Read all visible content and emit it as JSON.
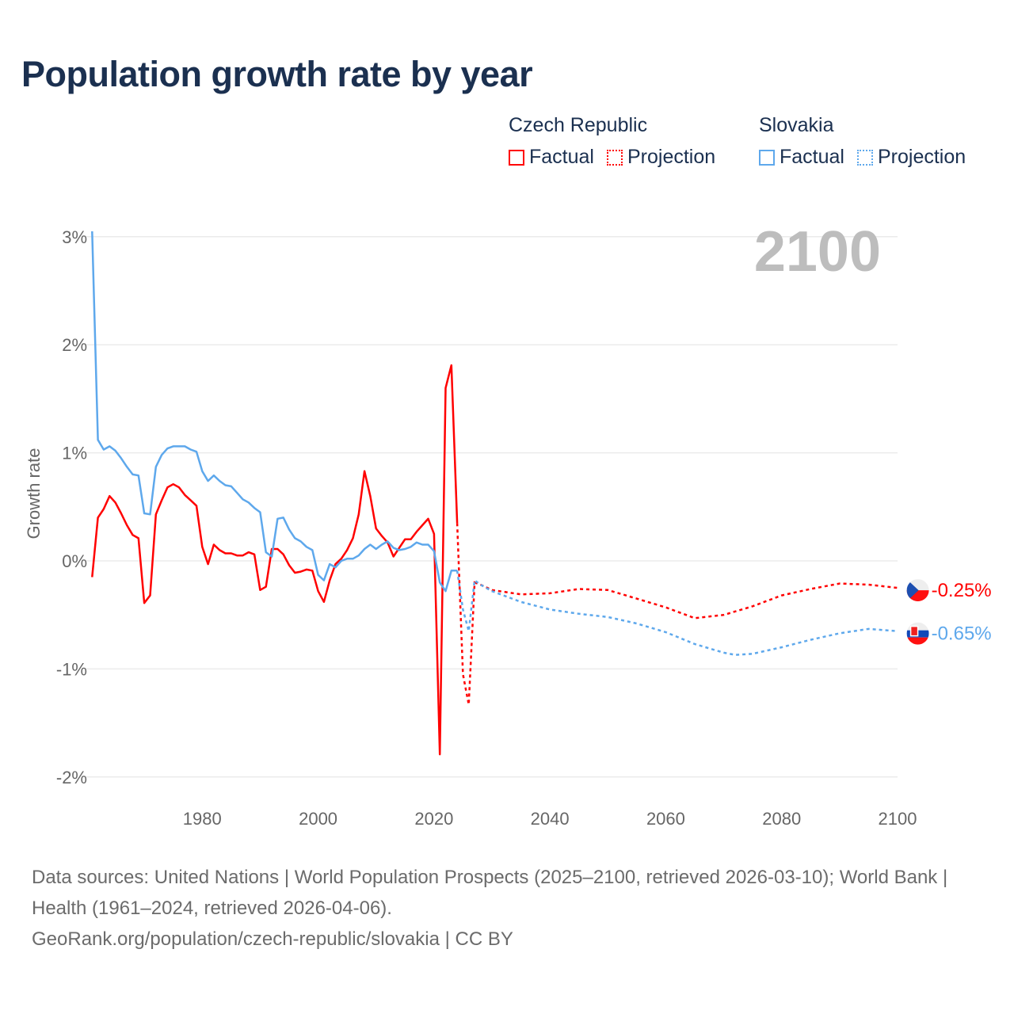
{
  "title": "Population growth rate by year",
  "legend": {
    "groups": [
      {
        "name": "Czech Republic",
        "color": "#ff0000",
        "factual": "Factual",
        "projection": "Projection"
      },
      {
        "name": "Slovakia",
        "color": "#5ea8ec",
        "factual": "Factual",
        "projection": "Projection"
      }
    ]
  },
  "footer": {
    "sources": "Data sources: United Nations | World Population Prospects (2025–2100, retrieved 2026-03-10); World Bank | Health (1961–2024, retrieved 2026-04-06).",
    "url": "GeoRank.org/population/czech-republic/slovakia | CC BY"
  },
  "chart_data": {
    "type": "line",
    "title": "Population growth rate by year",
    "ylabel": "Growth rate",
    "xlabel": "",
    "year_display": "2100",
    "xlim": [
      1960,
      2100
    ],
    "ylim": [
      -2.2,
      3.1
    ],
    "x_ticks": [
      "1980",
      "2000",
      "2020",
      "2040",
      "2060",
      "2080",
      "2100"
    ],
    "y_ticks": [
      {
        "v": 3,
        "label": "3%"
      },
      {
        "v": 2,
        "label": "2%"
      },
      {
        "v": 1,
        "label": "1%"
      },
      {
        "v": 0,
        "label": "0%"
      },
      {
        "v": -1,
        "label": "-1%"
      },
      {
        "v": -2,
        "label": "-2%"
      }
    ],
    "grid": true,
    "series": [
      {
        "name": "Czech Republic",
        "color": "#ff0000",
        "end_label": "-0.25%",
        "factual_start": 1961,
        "factual": [
          -0.15,
          0.4,
          0.48,
          0.6,
          0.54,
          0.44,
          0.33,
          0.24,
          0.21,
          -0.39,
          -0.32,
          0.43,
          0.56,
          0.68,
          0.71,
          0.68,
          0.61,
          0.56,
          0.51,
          0.13,
          -0.03,
          0.15,
          0.1,
          0.07,
          0.07,
          0.05,
          0.05,
          0.08,
          0.06,
          -0.27,
          -0.24,
          0.11,
          0.11,
          0.06,
          -0.04,
          -0.11,
          -0.1,
          -0.08,
          -0.09,
          -0.28,
          -0.38,
          -0.18,
          -0.03,
          0.02,
          0.1,
          0.21,
          0.43,
          0.83,
          0.6,
          0.3,
          0.23,
          0.17,
          0.04,
          0.12,
          0.2,
          0.2,
          0.27,
          0.33,
          0.39,
          0.25,
          -1.79,
          1.6,
          1.81,
          0.35
        ],
        "projection": [
          [
            2024,
            0.35
          ],
          [
            2025,
            -1.05
          ],
          [
            2026,
            -1.33
          ],
          [
            2027,
            -0.2
          ],
          [
            2028,
            -0.22
          ],
          [
            2030,
            -0.27
          ],
          [
            2035,
            -0.31
          ],
          [
            2040,
            -0.3
          ],
          [
            2045,
            -0.26
          ],
          [
            2050,
            -0.27
          ],
          [
            2055,
            -0.35
          ],
          [
            2060,
            -0.43
          ],
          [
            2065,
            -0.53
          ],
          [
            2070,
            -0.5
          ],
          [
            2075,
            -0.42
          ],
          [
            2080,
            -0.32
          ],
          [
            2085,
            -0.26
          ],
          [
            2090,
            -0.21
          ],
          [
            2095,
            -0.22
          ],
          [
            2100,
            -0.25
          ]
        ]
      },
      {
        "name": "Slovakia",
        "color": "#5ea8ec",
        "end_label": "-0.65%",
        "factual_start": 1961,
        "factual": [
          3.05,
          1.12,
          1.03,
          1.06,
          1.02,
          0.95,
          0.87,
          0.8,
          0.79,
          0.44,
          0.43,
          0.87,
          0.98,
          1.04,
          1.06,
          1.06,
          1.06,
          1.03,
          1.01,
          0.83,
          0.74,
          0.79,
          0.74,
          0.7,
          0.69,
          0.63,
          0.57,
          0.54,
          0.49,
          0.45,
          0.08,
          0.04,
          0.39,
          0.4,
          0.29,
          0.21,
          0.18,
          0.13,
          0.1,
          -0.13,
          -0.18,
          -0.03,
          -0.06,
          0.0,
          0.02,
          0.02,
          0.05,
          0.11,
          0.15,
          0.11,
          0.15,
          0.18,
          0.12,
          0.1,
          0.11,
          0.13,
          0.17,
          0.15,
          0.15,
          0.09,
          -0.2,
          -0.28,
          -0.09,
          -0.09
        ],
        "projection": [
          [
            2024,
            -0.09
          ],
          [
            2025,
            -0.45
          ],
          [
            2026,
            -0.65
          ],
          [
            2027,
            -0.18
          ],
          [
            2028,
            -0.22
          ],
          [
            2030,
            -0.28
          ],
          [
            2035,
            -0.38
          ],
          [
            2040,
            -0.45
          ],
          [
            2045,
            -0.49
          ],
          [
            2050,
            -0.52
          ],
          [
            2055,
            -0.58
          ],
          [
            2060,
            -0.66
          ],
          [
            2065,
            -0.77
          ],
          [
            2070,
            -0.85
          ],
          [
            2072,
            -0.87
          ],
          [
            2075,
            -0.86
          ],
          [
            2080,
            -0.8
          ],
          [
            2085,
            -0.73
          ],
          [
            2090,
            -0.67
          ],
          [
            2095,
            -0.63
          ],
          [
            2100,
            -0.65
          ]
        ]
      }
    ]
  }
}
